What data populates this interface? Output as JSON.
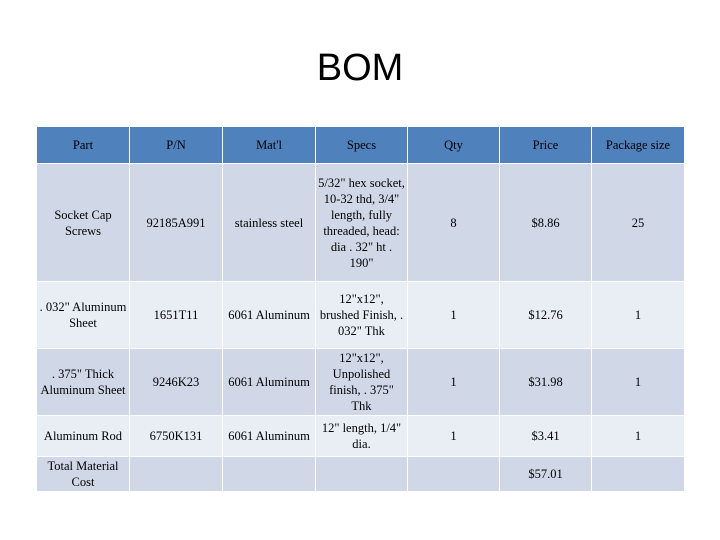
{
  "title": "BOM",
  "columns": [
    "Part",
    "P/N",
    "Mat'l",
    "Specs",
    "Qty",
    "Price",
    "Package size"
  ],
  "rows": [
    {
      "part": "Socket Cap Screws",
      "pn": "92185A991",
      "matl": "stainless  steel",
      "specs": "5/32\" hex socket, 10-32 thd, 3/4\" length, fully threaded, head: dia . 32\" ht . 190\"",
      "qty": "8",
      "price": "$8.86",
      "package": "25"
    },
    {
      "part": ". 032\" Aluminum Sheet",
      "pn": "1651T11",
      "matl": "6061 Aluminum",
      "specs": "12\"x12\", brushed Finish, . 032\" Thk",
      "qty": "1",
      "price": "$12.76",
      "package": "1"
    },
    {
      "part": ". 375\" Thick Aluminum Sheet",
      "pn": "9246K23",
      "matl": "6061 Aluminum",
      "specs": "12\"x12\", Unpolished finish, . 375\" Thk",
      "qty": "1",
      "price": "$31.98",
      "package": "1"
    },
    {
      "part": "Aluminum Rod",
      "pn": "6750K131",
      "matl": "6061 Aluminum",
      "specs": "12\" length, 1/4\" dia.",
      "qty": "1",
      "price": "$3.41",
      "package": "1"
    },
    {
      "part": "Total Material Cost",
      "pn": "",
      "matl": "",
      "specs": "",
      "qty": "",
      "price": "$57.01",
      "package": ""
    }
  ]
}
